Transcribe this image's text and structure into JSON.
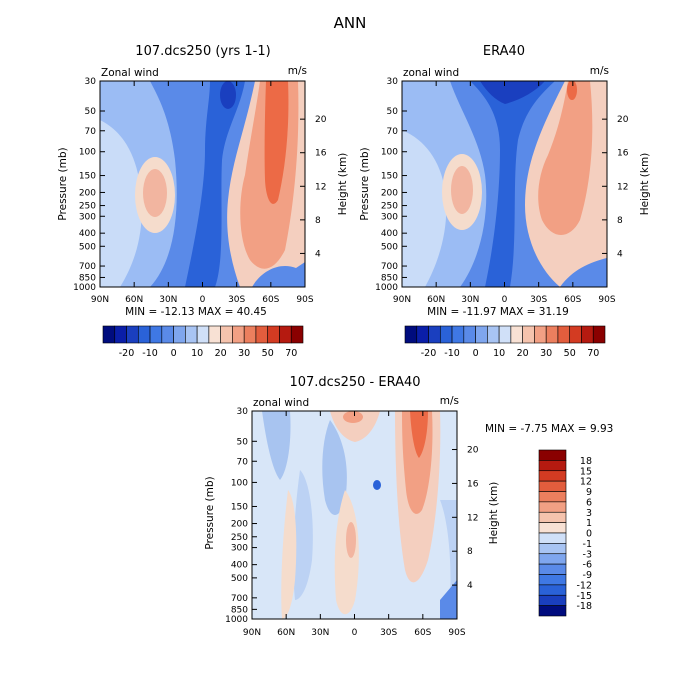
{
  "chart_data": [
    {
      "type": "heatmap",
      "suptitle": "ANN",
      "title": "107.dcs250 (yrs 1-1)",
      "variable": "Zonal wind",
      "units": "m/s",
      "ylabel": "Pressure (mb)",
      "ylabel_right": "Height (km)",
      "xticks": [
        "90N",
        "60N",
        "30N",
        "0",
        "30S",
        "60S",
        "90S"
      ],
      "pressure_ticks": [
        30,
        50,
        70,
        100,
        150,
        200,
        250,
        300,
        400,
        500,
        700,
        850,
        1000
      ],
      "height_ticks": [
        4,
        8,
        12,
        16,
        20
      ],
      "min_label": "MIN =",
      "min_text": "-12.13",
      "max_label": "MAX =",
      "max_text": "40.45",
      "min": -12.13,
      "max": 40.45,
      "colorbar_labels": [
        "-20",
        "-10",
        "0",
        "10",
        "20",
        "30",
        "50",
        "70"
      ],
      "colorbar_colors": [
        "#000c7e",
        "#0a1ea8",
        "#1a3fbf",
        "#2a62d8",
        "#3f78e4",
        "#5a8ae8",
        "#7fa6ee",
        "#a8c4f3",
        "#d0e0f8",
        "#f8e1d4",
        "#f5c3ad",
        "#f2a084",
        "#ec7f5e",
        "#e25d3d",
        "#d33b22",
        "#b51a10",
        "#8a0000"
      ]
    },
    {
      "type": "heatmap",
      "title": "ERA40",
      "variable": "zonal wind",
      "units": "m/s",
      "ylabel": "Pressure (mb)",
      "ylabel_right": "Height (km)",
      "xticks": [
        "90N",
        "60N",
        "30N",
        "0",
        "30S",
        "60S",
        "90S"
      ],
      "pressure_ticks": [
        30,
        50,
        70,
        100,
        150,
        200,
        250,
        300,
        400,
        500,
        700,
        850,
        1000
      ],
      "height_ticks": [
        4,
        8,
        12,
        16,
        20
      ],
      "min_label": "MIN =",
      "min_text": "-11.97",
      "max_label": "MAX =",
      "max_text": "31.19",
      "min": -11.97,
      "max": 31.19,
      "colorbar_labels": [
        "-20",
        "-10",
        "0",
        "10",
        "20",
        "30",
        "50",
        "70"
      ],
      "colorbar_colors": [
        "#000c7e",
        "#0a1ea8",
        "#1a3fbf",
        "#2a62d8",
        "#3f78e4",
        "#5a8ae8",
        "#7fa6ee",
        "#a8c4f3",
        "#d0e0f8",
        "#f8e1d4",
        "#f5c3ad",
        "#f2a084",
        "#ec7f5e",
        "#e25d3d",
        "#d33b22",
        "#b51a10",
        "#8a0000"
      ]
    },
    {
      "type": "heatmap",
      "title": "107.dcs250 - ERA40",
      "variable": "zonal wind",
      "units": "m/s",
      "ylabel": "Pressure (mb)",
      "ylabel_right": "Height (km)",
      "xticks": [
        "90N",
        "60N",
        "30N",
        "0",
        "30S",
        "60S",
        "90S"
      ],
      "pressure_ticks": [
        30,
        50,
        70,
        100,
        150,
        200,
        250,
        300,
        400,
        500,
        700,
        850,
        1000
      ],
      "height_ticks": [
        4,
        8,
        12,
        16,
        20
      ],
      "min_label": "MIN =",
      "min_text": "-7.75",
      "max_label": "MAX =",
      "max_text": "9.93",
      "min": -7.75,
      "max": 9.93,
      "colorbar_labels": [
        "18",
        "15",
        "12",
        "9",
        "6",
        "3",
        "1",
        "0",
        "-1",
        "-3",
        "-6",
        "-9",
        "-12",
        "-15",
        "-18"
      ],
      "colorbar_colors": [
        "#8a0000",
        "#b51a10",
        "#d33b22",
        "#e25d3d",
        "#ec7f5e",
        "#f2a084",
        "#f5c3ad",
        "#f8e1d4",
        "#d0e0f8",
        "#a8c4f3",
        "#7fa6ee",
        "#5a8ae8",
        "#3f78e4",
        "#2a62d8",
        "#1a3fbf",
        "#000c7e"
      ]
    }
  ]
}
